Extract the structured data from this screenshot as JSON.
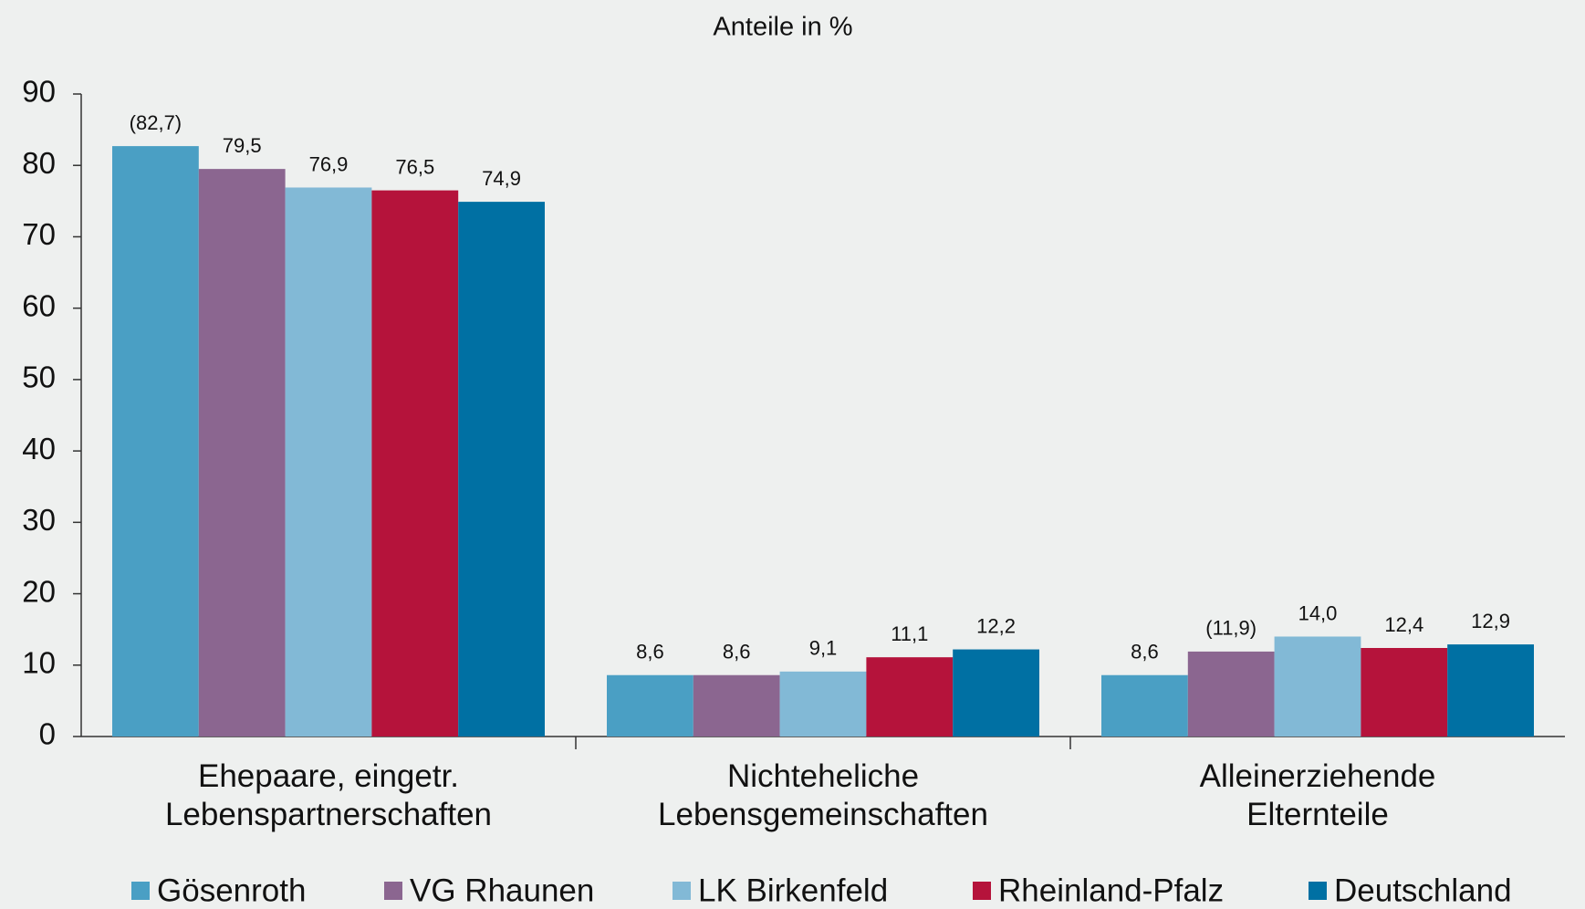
{
  "chart_data": {
    "type": "bar",
    "title": "Anteile in %",
    "categories": [
      "Ehepaare, eingetr.\nLebenspartnerschaften",
      "Nichteheliche\nLebensgemeinschaften",
      "Alleinerziehende\nElternteile"
    ],
    "series": [
      {
        "name": "Gösenroth",
        "color": "#4a9fc4",
        "values": [
          82.7,
          8.6,
          8.6
        ],
        "value_labels": [
          "(82,7)",
          "8,6",
          "8,6"
        ]
      },
      {
        "name": "VG Rhaunen",
        "color": "#8b6690",
        "values": [
          79.5,
          8.6,
          11.9
        ],
        "value_labels": [
          "79,5",
          "8,6",
          "(11,9)"
        ]
      },
      {
        "name": "LK Birkenfeld",
        "color": "#82b9d6",
        "values": [
          76.9,
          9.1,
          14.0
        ],
        "value_labels": [
          "76,9",
          "9,1",
          "14,0"
        ]
      },
      {
        "name": "Rheinland-Pfalz",
        "color": "#b5133b",
        "values": [
          76.5,
          11.1,
          12.4
        ],
        "value_labels": [
          "76,5",
          "11,1",
          "12,4"
        ]
      },
      {
        "name": "Deutschland",
        "color": "#0070a3",
        "values": [
          74.9,
          12.2,
          12.9
        ],
        "value_labels": [
          "74,9",
          "12,2",
          "12,9"
        ]
      }
    ],
    "ylim": [
      0,
      90
    ],
    "yticks": [
      0,
      10,
      20,
      30,
      40,
      50,
      60,
      70,
      80,
      90
    ],
    "grid": false,
    "legend": "bottom"
  }
}
